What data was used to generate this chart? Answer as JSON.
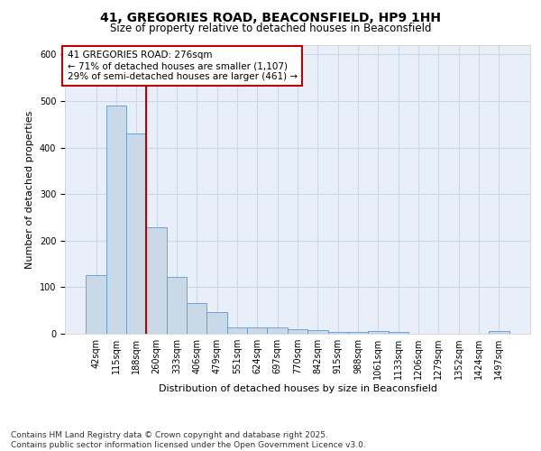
{
  "title1": "41, GREGORIES ROAD, BEACONSFIELD, HP9 1HH",
  "title2": "Size of property relative to detached houses in Beaconsfield",
  "xlabel": "Distribution of detached houses by size in Beaconsfield",
  "ylabel": "Number of detached properties",
  "categories": [
    "42sqm",
    "115sqm",
    "188sqm",
    "260sqm",
    "333sqm",
    "406sqm",
    "479sqm",
    "551sqm",
    "624sqm",
    "697sqm",
    "770sqm",
    "842sqm",
    "915sqm",
    "988sqm",
    "1061sqm",
    "1133sqm",
    "1206sqm",
    "1279sqm",
    "1352sqm",
    "1424sqm",
    "1497sqm"
  ],
  "values": [
    125,
    490,
    430,
    228,
    122,
    65,
    46,
    14,
    14,
    14,
    10,
    7,
    3,
    3,
    5,
    3,
    0,
    0,
    0,
    0,
    5
  ],
  "bar_color": "#c9d9e8",
  "bar_edge_color": "#5b9bd5",
  "vline_index": 3,
  "vline_color": "#c00000",
  "annotation_title": "41 GREGORIES ROAD: 276sqm",
  "annotation_line1": "← 71% of detached houses are smaller (1,107)",
  "annotation_line2": "29% of semi-detached houses are larger (461) →",
  "annotation_box_color": "#c00000",
  "grid_color": "#c9d9e8",
  "background_color": "#e8eff8",
  "footer_line1": "Contains HM Land Registry data © Crown copyright and database right 2025.",
  "footer_line2": "Contains public sector information licensed under the Open Government Licence v3.0.",
  "ylim": [
    0,
    620
  ],
  "title1_fontsize": 10,
  "title2_fontsize": 8.5,
  "xlabel_fontsize": 8,
  "ylabel_fontsize": 8,
  "tick_fontsize": 7,
  "footer_fontsize": 6.5,
  "annotation_fontsize": 7.5
}
